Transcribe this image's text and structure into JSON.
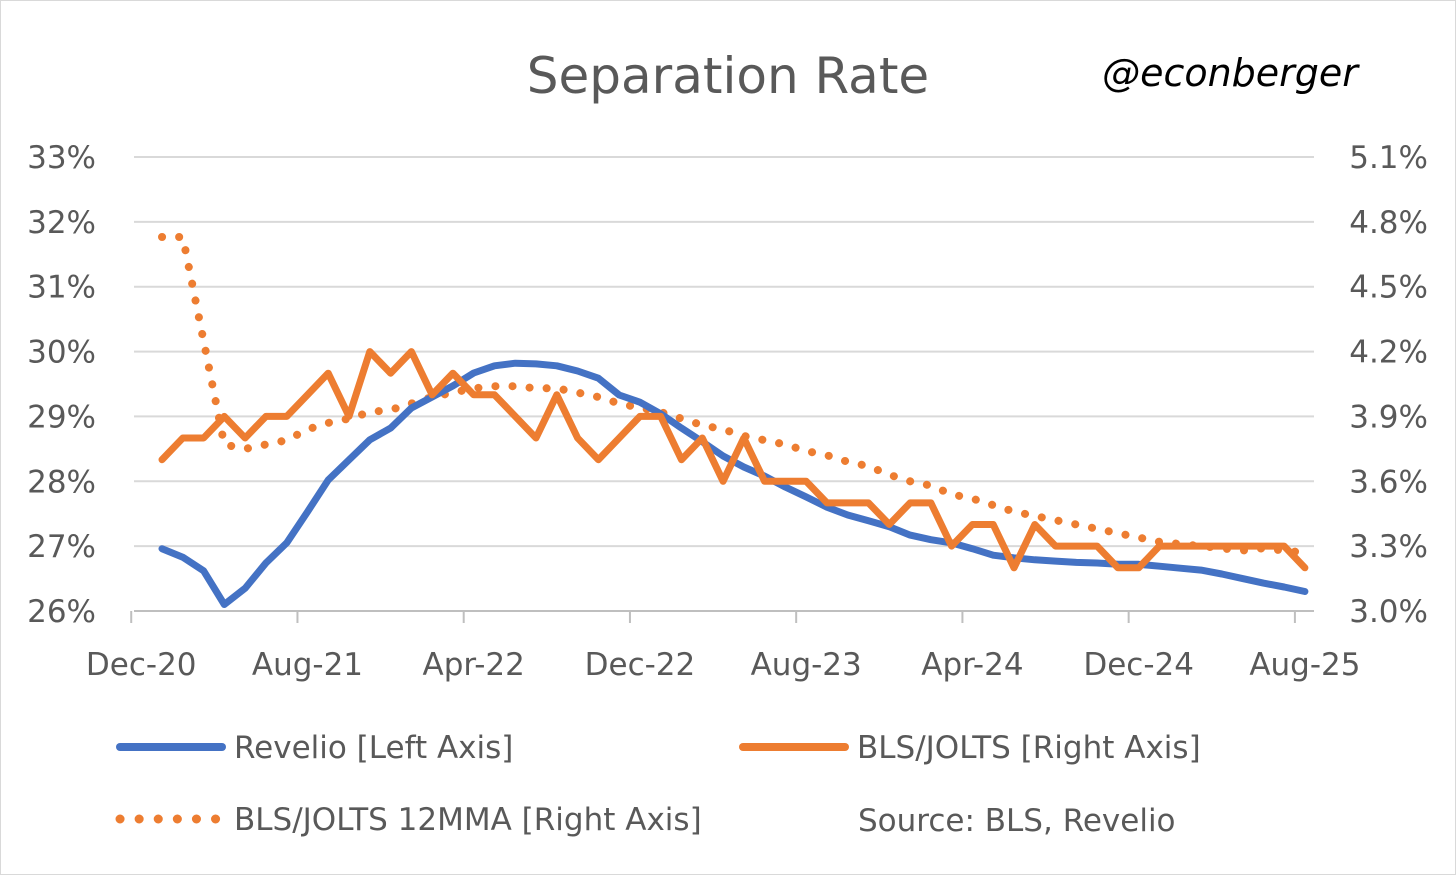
{
  "chart_data": {
    "type": "line",
    "title": "Separation Rate",
    "watermark": "@econberger",
    "source": "Source: BLS, Revelio",
    "xlabel": "",
    "ylabel_left": "",
    "ylabel_right": "",
    "x_start": "Jan-21",
    "x_end": "Aug-25",
    "x_tick_labels": [
      "Dec-20",
      "Aug-21",
      "Apr-22",
      "Dec-22",
      "Aug-23",
      "Apr-24",
      "Dec-24",
      "Aug-25"
    ],
    "y_left": {
      "range": [
        26,
        33
      ],
      "step": 1,
      "tick_labels": [
        "26%",
        "27%",
        "28%",
        "29%",
        "30%",
        "31%",
        "32%",
        "33%"
      ]
    },
    "y_right": {
      "range": [
        3.0,
        5.1
      ],
      "step": 0.3,
      "tick_labels": [
        "3.0%",
        "3.3%",
        "3.6%",
        "3.9%",
        "4.2%",
        "4.5%",
        "4.8%",
        "5.1%"
      ]
    },
    "grid": true,
    "legend_placement": "bottom",
    "series": [
      {
        "name": "Revelio [Left Axis]",
        "axis": "left",
        "style": "solid",
        "color": "#4472C4",
        "values": [
          26.96,
          26.83,
          26.62,
          26.1,
          26.35,
          26.74,
          27.05,
          27.53,
          28.02,
          28.33,
          28.64,
          28.82,
          29.13,
          29.3,
          29.47,
          29.67,
          29.78,
          29.82,
          29.81,
          29.78,
          29.7,
          29.59,
          29.33,
          29.22,
          29.04,
          28.82,
          28.61,
          28.39,
          28.22,
          28.08,
          27.91,
          27.76,
          27.6,
          27.48,
          27.39,
          27.3,
          27.17,
          27.1,
          27.05,
          26.96,
          26.86,
          26.82,
          26.79,
          26.77,
          26.75,
          26.74,
          26.72,
          26.72,
          26.69,
          26.66,
          26.63,
          26.57,
          26.5,
          26.43,
          26.37,
          26.3
        ]
      },
      {
        "name": "BLS/JOLTS [Right Axis]",
        "axis": "right",
        "style": "solid",
        "color": "#ED7D31",
        "values": [
          3.7,
          3.8,
          3.8,
          3.9,
          3.8,
          3.9,
          3.9,
          4.0,
          4.1,
          3.9,
          4.2,
          4.1,
          4.2,
          4.0,
          4.1,
          4.0,
          4.0,
          3.9,
          3.8,
          4.0,
          3.8,
          3.7,
          3.8,
          3.9,
          3.9,
          3.7,
          3.8,
          3.6,
          3.8,
          3.6,
          3.6,
          3.6,
          3.5,
          3.5,
          3.5,
          3.4,
          3.5,
          3.5,
          3.3,
          3.4,
          3.4,
          3.2,
          3.4,
          3.3,
          3.3,
          3.3,
          3.2,
          3.2,
          3.3,
          3.3,
          3.3,
          3.3,
          3.3,
          3.3,
          3.3,
          3.2
        ]
      },
      {
        "name": "BLS/JOLTS 12MMA [Right Axis]",
        "axis": "right",
        "style": "dotted",
        "color": "#ED7D31",
        "values": [
          4.73,
          4.73,
          4.25,
          3.77,
          3.75,
          3.77,
          3.79,
          3.84,
          3.87,
          3.89,
          3.92,
          3.93,
          3.96,
          3.99,
          4.01,
          4.03,
          4.04,
          4.04,
          4.03,
          4.03,
          4.01,
          3.99,
          3.96,
          3.94,
          3.92,
          3.89,
          3.86,
          3.84,
          3.81,
          3.79,
          3.77,
          3.74,
          3.72,
          3.69,
          3.67,
          3.63,
          3.6,
          3.58,
          3.54,
          3.52,
          3.49,
          3.46,
          3.44,
          3.42,
          3.4,
          3.38,
          3.36,
          3.34,
          3.32,
          3.31,
          3.3,
          3.29,
          3.28,
          3.29,
          3.28,
          3.27
        ]
      }
    ]
  }
}
